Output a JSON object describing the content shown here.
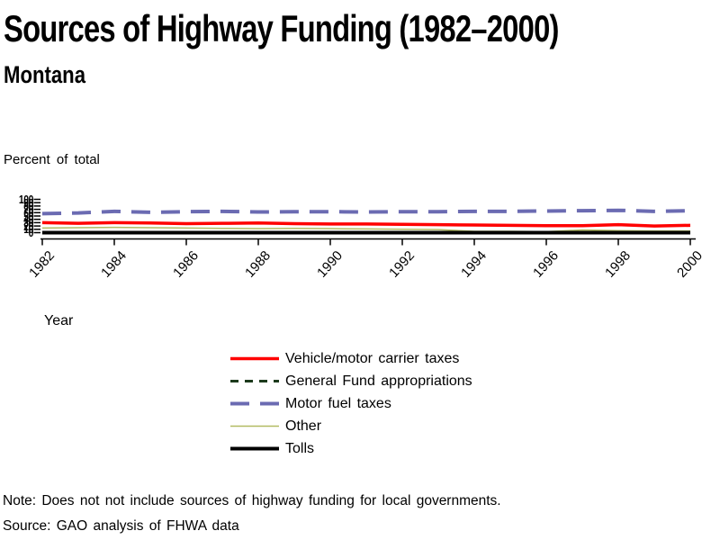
{
  "note": "Note: Does not not include sources of highway funding for local governments.",
  "source": "Source: GAO analysis of FHWA data",
  "chart_data": {
    "type": "line",
    "title": "Sources of Highway Funding (1982–2000)",
    "subtitle": "Montana",
    "ylabel": "Percent of total",
    "xlabel": "Year",
    "ylim": [
      0,
      100
    ],
    "y_ticks": [
      0,
      10,
      20,
      30,
      40,
      50,
      60,
      70,
      80,
      90,
      100
    ],
    "grid": false,
    "legend_position": "bottom-center",
    "x": [
      1982,
      1983,
      1984,
      1985,
      1986,
      1987,
      1988,
      1989,
      1990,
      1991,
      1992,
      1993,
      1994,
      1995,
      1996,
      1997,
      1998,
      1999,
      2000
    ],
    "x_tick_labels": [
      "1982",
      "1984",
      "1986",
      "1988",
      "1990",
      "1992",
      "1994",
      "1996",
      "1998",
      "2000"
    ],
    "series": [
      {
        "name": "Vehicle/motor carrier taxes",
        "key": "vehicle",
        "color": "#ff0000",
        "style": "solid",
        "width": 3.5,
        "values": [
          30,
          28,
          30,
          29,
          27,
          28,
          29,
          27,
          26,
          26,
          25,
          24,
          23,
          22,
          21,
          21,
          24,
          20,
          22
        ]
      },
      {
        "name": "General Fund appropriations",
        "key": "general_fund",
        "color": "#1c3a1c",
        "style": "dashed-short",
        "width": 3,
        "values": [
          0,
          0,
          0,
          0,
          0,
          0,
          0,
          0,
          0,
          0,
          0,
          0,
          0,
          0,
          0,
          0,
          0,
          0,
          0
        ]
      },
      {
        "name": "Motor fuel taxes",
        "key": "motor_fuel",
        "color": "#6b6bb2",
        "style": "dashed-long",
        "width": 4,
        "values": [
          57,
          59,
          64,
          61,
          63,
          64,
          62,
          63,
          63,
          62,
          63,
          63,
          64,
          64,
          65,
          66,
          67,
          64,
          66
        ]
      },
      {
        "name": "Other",
        "key": "other",
        "color": "#b2ba62",
        "style": "solid",
        "width": 1.5,
        "values": [
          14,
          15,
          16,
          15,
          14,
          13,
          12,
          13,
          12,
          11,
          10,
          9,
          4,
          4,
          3,
          8,
          6,
          5,
          5
        ]
      },
      {
        "name": "Tolls",
        "key": "tolls",
        "color": "#000000",
        "style": "solid",
        "width": 4,
        "values": [
          0,
          0,
          0,
          0,
          0,
          0,
          0,
          0,
          0,
          0,
          0,
          0,
          0,
          0,
          0,
          0,
          0,
          0,
          0
        ]
      }
    ]
  }
}
